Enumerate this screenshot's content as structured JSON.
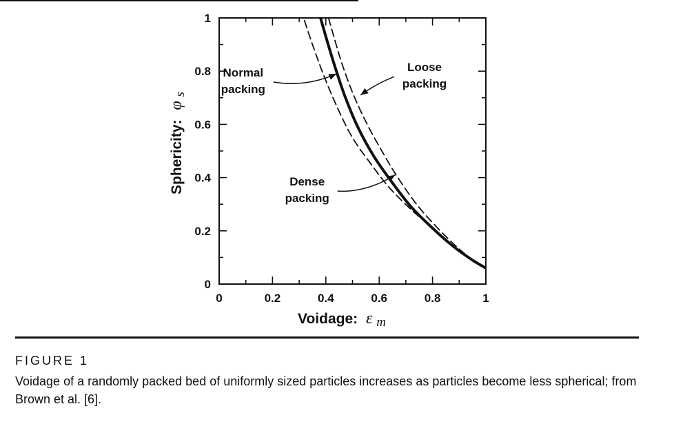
{
  "chart_data": {
    "type": "line",
    "xlabel": "Voidage:",
    "xlabel_symbol": "ε",
    "xlabel_subscript": "m",
    "ylabel": "Sphericity:",
    "ylabel_symbol": "φ",
    "ylabel_subscript": "s",
    "xlim": [
      0,
      1
    ],
    "ylim": [
      0,
      1
    ],
    "xticks": [
      "0",
      "0.2",
      "0.4",
      "0.6",
      "0.8",
      "1"
    ],
    "yticks": [
      "0",
      "0.2",
      "0.4",
      "0.6",
      "0.8",
      "1"
    ],
    "grid": false,
    "series": [
      {
        "name": "Normal packing",
        "style": "solid",
        "x": [
          0.38,
          0.4,
          0.43,
          0.47,
          0.52,
          0.58,
          0.65,
          0.72,
          0.8,
          0.88,
          0.95,
          1.0
        ],
        "y": [
          1.0,
          0.93,
          0.83,
          0.71,
          0.59,
          0.48,
          0.38,
          0.29,
          0.21,
          0.14,
          0.09,
          0.06
        ]
      },
      {
        "name": "Loose packing",
        "style": "dashed",
        "x": [
          0.41,
          0.43,
          0.46,
          0.5,
          0.55,
          0.61,
          0.67,
          0.74,
          0.81,
          0.88,
          0.95,
          1.0
        ],
        "y": [
          1.0,
          0.93,
          0.83,
          0.72,
          0.61,
          0.5,
          0.4,
          0.3,
          0.22,
          0.15,
          0.09,
          0.06
        ]
      },
      {
        "name": "Dense packing",
        "style": "dashed",
        "x": [
          0.32,
          0.35,
          0.39,
          0.44,
          0.5,
          0.57,
          0.64,
          0.72,
          0.8,
          0.88,
          0.95,
          1.0
        ],
        "y": [
          0.99,
          0.9,
          0.79,
          0.67,
          0.55,
          0.45,
          0.36,
          0.28,
          0.21,
          0.14,
          0.09,
          0.06
        ]
      }
    ],
    "annotations": [
      {
        "lines": [
          "Normal",
          "packing"
        ],
        "at": [
          0.09,
          0.78
        ],
        "arrow_to": [
          0.44,
          0.79
        ]
      },
      {
        "lines": [
          "Loose",
          "packing"
        ],
        "at": [
          0.77,
          0.8
        ],
        "arrow_to": [
          0.53,
          0.71
        ]
      },
      {
        "lines": [
          "Dense",
          "packing"
        ],
        "at": [
          0.33,
          0.37
        ],
        "arrow_to": [
          0.66,
          0.41
        ]
      }
    ]
  },
  "figure": {
    "label": "FIGURE 1",
    "caption": "Voidage of a randomly packed bed of uniformly sized particles increases as particles become less spherical; from Brown et al. [6]."
  }
}
